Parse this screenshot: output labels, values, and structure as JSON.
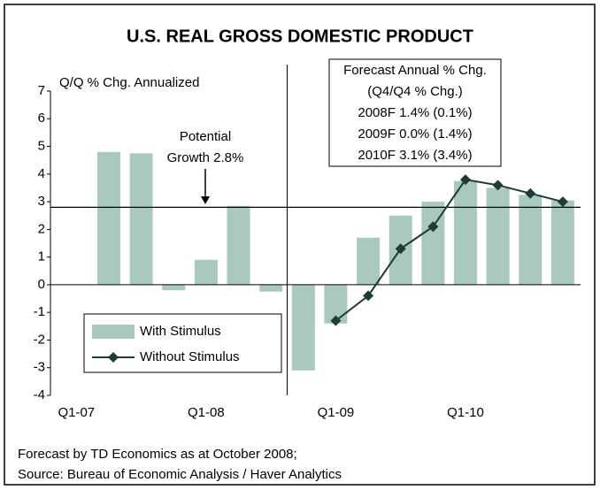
{
  "chart_data": {
    "type": "bar",
    "title": "U.S. REAL GROSS DOMESTIC PRODUCT",
    "y_axis_label": "Q/Q % Chg. Annualized",
    "categories": [
      "Q1-07",
      null,
      null,
      null,
      "Q1-08",
      null,
      null,
      null,
      "Q1-09",
      null,
      null,
      null,
      "Q1-10",
      null,
      null,
      null
    ],
    "series": [
      {
        "name": "With Stimulus",
        "type": "bar",
        "color": "#a9c9c0",
        "values": [
          null,
          4.8,
          4.75,
          -0.2,
          0.9,
          2.85,
          -0.25,
          -3.1,
          -1.4,
          1.7,
          2.5,
          3.0,
          3.75,
          3.5,
          3.25,
          3.05
        ]
      },
      {
        "name": "Without Stimulus",
        "type": "line",
        "color": "#1e3b35",
        "values": [
          null,
          null,
          null,
          null,
          null,
          null,
          null,
          null,
          -1.3,
          -0.4,
          1.3,
          2.1,
          3.8,
          3.6,
          3.3,
          3.0
        ]
      }
    ],
    "ylim": [
      -4,
      7
    ],
    "yticks": [
      -4,
      -3,
      -2,
      -1,
      0,
      1,
      2,
      3,
      4,
      5,
      6,
      7
    ],
    "potential_growth": 2.8,
    "potential_growth_label": [
      "Potential",
      "Growth 2.8%"
    ],
    "forecast_box": [
      "Forecast Annual % Chg.",
      "(Q4/Q4 % Chg.)",
      "2008F 1.4% (0.1%)",
      "2009F 0.0% (1.4%)",
      "2010F 3.1% (3.4%)"
    ],
    "footnotes": [
      "Forecast by TD Economics as at October 2008;",
      "Source: Bureau of Economic Analysis / Haver Analytics"
    ]
  }
}
